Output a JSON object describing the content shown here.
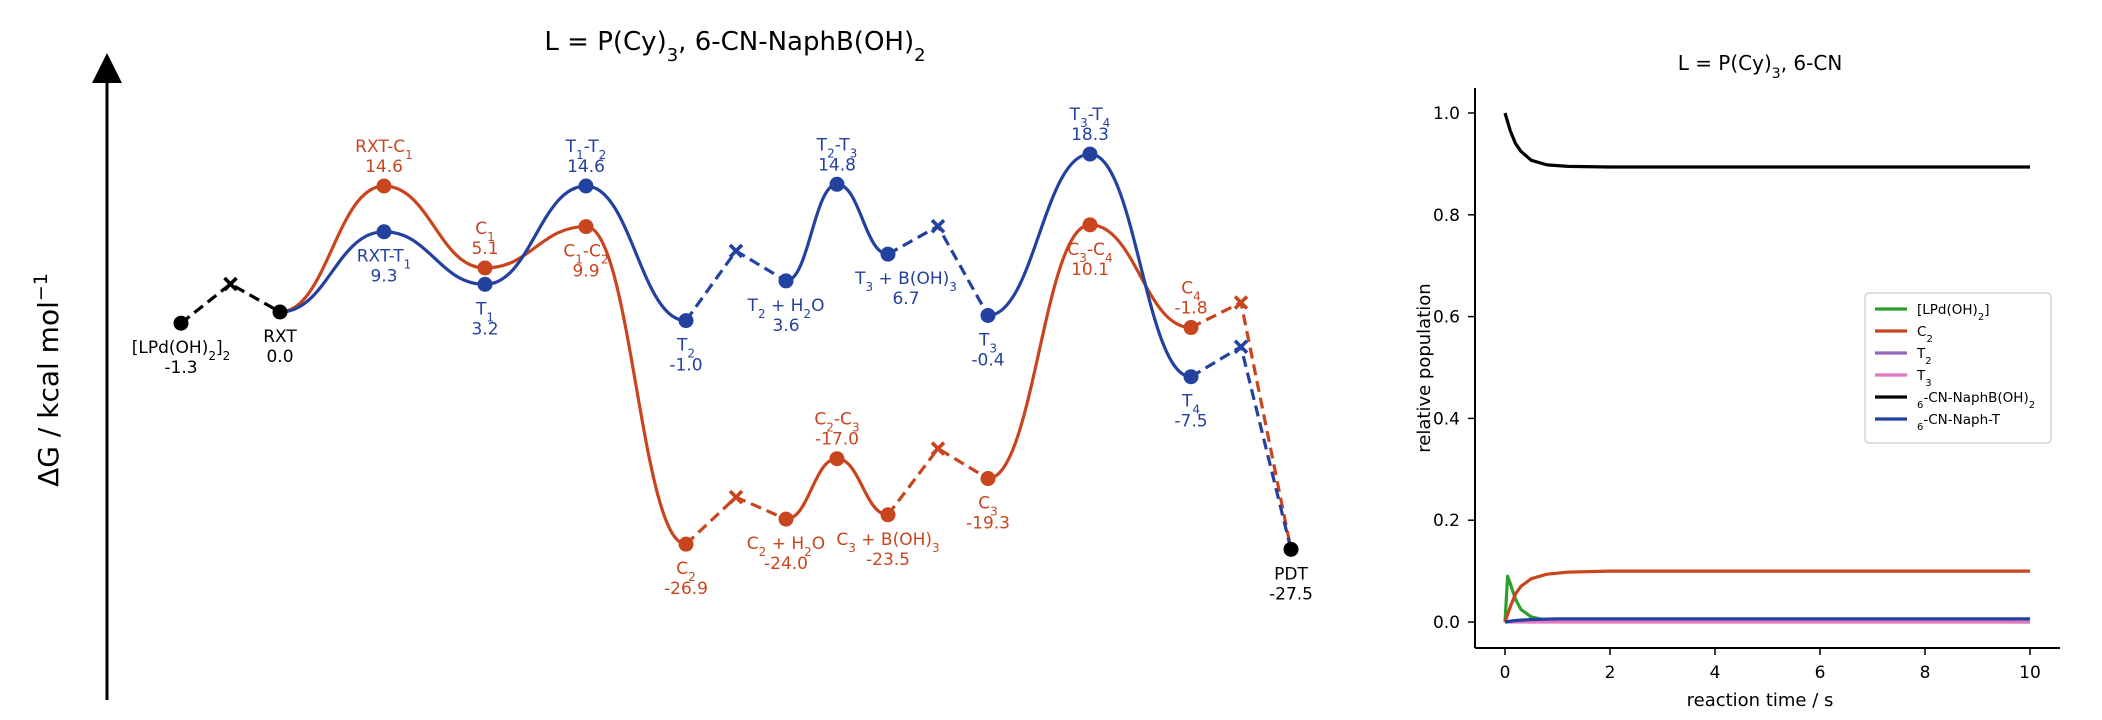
{
  "chart_data": [
    {
      "type": "line",
      "title": "L = P(Cy)3, 6-CN-NaphB(OH)2",
      "ylabel": "ΔG / kcal mol-1",
      "colors": {
        "C": "#c8451e",
        "T": "#2342a0",
        "common": "#000000"
      },
      "points": [
        {
          "key": "LPd",
          "label": "[LPd(OH)2]2",
          "value": -1.3,
          "value_text": "-1.3",
          "series": "common"
        },
        {
          "key": "RXT",
          "label": "RXT",
          "value": 0.0,
          "value_text": "0.0",
          "series": "common"
        },
        {
          "key": "RXTC1",
          "label": "RXT-C1",
          "value": 14.6,
          "value_text": "14.6",
          "series": "C"
        },
        {
          "key": "RXTT1",
          "label": "RXT-T1",
          "value": 9.3,
          "value_text": "9.3",
          "series": "T"
        },
        {
          "key": "C1",
          "label": "C1",
          "value": 5.1,
          "value_text": "5.1",
          "series": "C"
        },
        {
          "key": "T1",
          "label": "T1",
          "value": 3.2,
          "value_text": "3.2",
          "series": "T"
        },
        {
          "key": "T1T2",
          "label": "T1-T2",
          "value": 14.6,
          "value_text": "14.6",
          "series": "T"
        },
        {
          "key": "C1C2",
          "label": "C1-C2",
          "value": 9.9,
          "value_text": "9.9",
          "series": "C"
        },
        {
          "key": "T2",
          "label": "T2",
          "value": -1.0,
          "value_text": "-1.0",
          "series": "T"
        },
        {
          "key": "C2",
          "label": "C2",
          "value": -26.9,
          "value_text": "-26.9",
          "series": "C"
        },
        {
          "key": "T2H2O",
          "label": "T2 + H2O",
          "value": 3.6,
          "value_text": "3.6",
          "series": "T"
        },
        {
          "key": "C2H2O",
          "label": "C2 + H2O",
          "value": -24.0,
          "value_text": "-24.0",
          "series": "C"
        },
        {
          "key": "T2T3",
          "label": "T2-T3",
          "value": 14.8,
          "value_text": "14.8",
          "series": "T"
        },
        {
          "key": "C2C3",
          "label": "C2-C3",
          "value": -17.0,
          "value_text": "-17.0",
          "series": "C"
        },
        {
          "key": "T3B",
          "label": "T3 + B(OH)3",
          "value": 6.7,
          "value_text": "6.7",
          "series": "T"
        },
        {
          "key": "C3B",
          "label": "C3 + B(OH)3",
          "value": -23.5,
          "value_text": "-23.5",
          "series": "C"
        },
        {
          "key": "T3",
          "label": "T3",
          "value": -0.4,
          "value_text": "-0.4",
          "series": "T"
        },
        {
          "key": "C3",
          "label": "C3",
          "value": -19.3,
          "value_text": "-19.3",
          "series": "C"
        },
        {
          "key": "T3T4",
          "label": "T3-T4",
          "value": 18.3,
          "value_text": "18.3",
          "series": "T"
        },
        {
          "key": "C3C4",
          "label": "C3-C4",
          "value": 10.1,
          "value_text": "10.1",
          "series": "C"
        },
        {
          "key": "C4",
          "label": "C4",
          "value": -1.8,
          "value_text": "-1.8",
          "series": "C"
        },
        {
          "key": "T4",
          "label": "T4",
          "value": -7.5,
          "value_text": "-7.5",
          "series": "T"
        },
        {
          "key": "PDT",
          "label": "PDT",
          "value": -27.5,
          "value_text": "-27.5",
          "series": "common"
        }
      ]
    },
    {
      "type": "line",
      "title": "L = P(Cy)3, 6-CN",
      "xlabel": "reaction time / s",
      "ylabel": "relative population",
      "xlim": [
        0,
        10
      ],
      "ylim": [
        0,
        1.0
      ],
      "xticks": [
        0,
        2,
        4,
        6,
        8,
        10
      ],
      "yticks": [
        0.0,
        0.2,
        0.4,
        0.6,
        0.8,
        1.0
      ],
      "legend_position": "center-right",
      "series": [
        {
          "name": "[LPd(OH)2]",
          "color": "#2ca02c",
          "x": [
            0,
            0.05,
            0.1,
            0.2,
            0.3,
            0.5,
            0.8,
            10
          ],
          "y": [
            0,
            0.09,
            0.075,
            0.045,
            0.025,
            0.01,
            0.003,
            0
          ]
        },
        {
          "name": "C2",
          "color": "#c8451e",
          "x": [
            0,
            0.1,
            0.2,
            0.3,
            0.5,
            0.8,
            1.2,
            2,
            10
          ],
          "y": [
            0,
            0.03,
            0.055,
            0.07,
            0.085,
            0.094,
            0.098,
            0.1,
            0.1
          ]
        },
        {
          "name": "T2",
          "color": "#9467bd",
          "x": [
            0,
            10
          ],
          "y": [
            0.001,
            0.001
          ]
        },
        {
          "name": "T3",
          "color": "#e377c2",
          "x": [
            0,
            10
          ],
          "y": [
            0,
            0
          ]
        },
        {
          "name": "6-CN-NaphB(OH)2",
          "color": "#000000",
          "x": [
            0,
            0.1,
            0.2,
            0.3,
            0.5,
            0.8,
            1.2,
            2,
            10
          ],
          "y": [
            1.0,
            0.965,
            0.94,
            0.925,
            0.907,
            0.898,
            0.895,
            0.894,
            0.894
          ]
        },
        {
          "name": "6-CN-Naph-T",
          "color": "#2342a0",
          "x": [
            0,
            0.2,
            0.5,
            1.0,
            10
          ],
          "y": [
            0,
            0.003,
            0.005,
            0.006,
            0.006
          ]
        }
      ]
    }
  ]
}
